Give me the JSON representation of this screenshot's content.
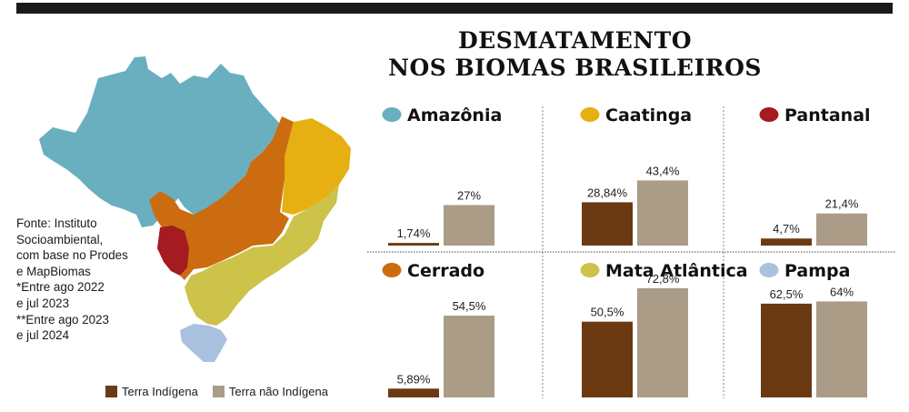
{
  "header": {
    "title_line1": "DESMATAMENTO",
    "title_line2": "NOS BIOMAS BRASILEIROS"
  },
  "source": {
    "lines": [
      "Fonte: Instituto",
      "Socioambiental,",
      "com base no Prodes",
      "e MapBiomas",
      "*Entre ago 2022",
      "e jul 2023",
      "**Entre ago 2023",
      "e jul 2024"
    ]
  },
  "legend": {
    "indigenous_label": "Terra Indígena",
    "non_indigenous_label": "Terra não Indígena",
    "indigenous_color": "#6b3a12",
    "non_indigenous_color": "#ab9c87"
  },
  "map": {
    "regions": [
      {
        "biome": "Amazônia",
        "color": "#6aafbf"
      },
      {
        "biome": "Caatinga",
        "color": "#e6b012"
      },
      {
        "biome": "Cerrado",
        "color": "#cc6c10"
      },
      {
        "biome": "Pantanal",
        "color": "#a51b1f"
      },
      {
        "biome": "Mata Atlântica",
        "color": "#cdc24a"
      },
      {
        "biome": "Pampa",
        "color": "#a9c1df"
      }
    ]
  },
  "chart_data": [
    {
      "type": "bar",
      "title": "Amazônia",
      "icon_color": "#6aafbf",
      "categories": [
        "Terra Indígena",
        "Terra não Indígena"
      ],
      "values": [
        1.74,
        27
      ],
      "labels": [
        "1,74%",
        "27%"
      ],
      "ylim": [
        0,
        75
      ]
    },
    {
      "type": "bar",
      "title": "Caatinga",
      "icon_color": "#e6b012",
      "categories": [
        "Terra Indígena",
        "Terra não Indígena"
      ],
      "values": [
        28.84,
        43.4
      ],
      "labels": [
        "28,84%",
        "43,4%"
      ],
      "ylim": [
        0,
        75
      ]
    },
    {
      "type": "bar",
      "title": "Pantanal",
      "icon_color": "#a51b1f",
      "categories": [
        "Terra Indígena",
        "Terra não Indígena"
      ],
      "values": [
        4.7,
        21.4
      ],
      "labels": [
        "4,7%",
        "21,4%"
      ],
      "ylim": [
        0,
        75
      ]
    },
    {
      "type": "bar",
      "title": "Cerrado",
      "icon_color": "#cc6c10",
      "categories": [
        "Terra Indígena",
        "Terra não Indígena"
      ],
      "values": [
        5.89,
        54.5
      ],
      "labels": [
        "5,89%",
        "54,5%"
      ],
      "ylim": [
        0,
        75
      ]
    },
    {
      "type": "bar",
      "title": "Mata Atlântica",
      "icon_color": "#cdc24a",
      "categories": [
        "Terra Indígena",
        "Terra não Indígena"
      ],
      "values": [
        50.5,
        72.8
      ],
      "labels": [
        "50,5%",
        "72,8%"
      ],
      "ylim": [
        0,
        75
      ]
    },
    {
      "type": "bar",
      "title": "Pampa",
      "icon_color": "#a9c1df",
      "categories": [
        "Terra Indígena",
        "Terra não Indígena"
      ],
      "values": [
        62.5,
        64
      ],
      "labels": [
        "62,5%",
        "64%"
      ],
      "ylim": [
        0,
        75
      ]
    }
  ]
}
